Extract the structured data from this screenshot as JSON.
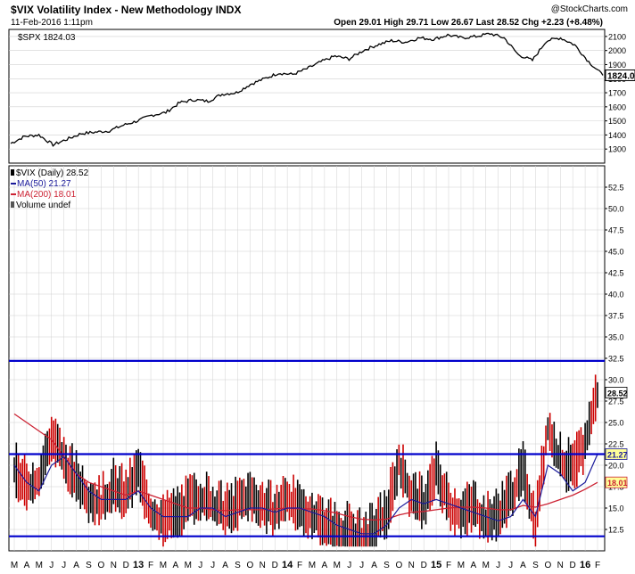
{
  "header": {
    "title": "$VIX Volatility Index - New Methodology INDX",
    "datetime": "11-Feb-2016 1:11pm",
    "watermark": "@StockCharts.com",
    "quote": "Open 29.01  High 29.71  Low 26.67  Last 28.52  Chg +2.23 (+8.48%)"
  },
  "colors": {
    "frame": "#000000",
    "grid": "#d0d0d0",
    "vix_bars": "#000000",
    "vix_down": "#cc0000",
    "ma50": "#1a1a9a",
    "ma200": "#cc2233",
    "hlines": "#0000cc",
    "last_tag": "#ffff99"
  },
  "chart_data": [
    {
      "type": "line",
      "legend": "$SPX 1824.03",
      "ylim": [
        1200,
        2150
      ],
      "y_ticks": [
        "2100",
        "2000",
        "1900",
        "1800",
        "1700",
        "1600",
        "1500",
        "1400",
        "1300"
      ],
      "last_label": "1824.03",
      "series": [
        {
          "name": "$SPX",
          "x": [
            0,
            1,
            2,
            3,
            4,
            5,
            6,
            7,
            8,
            9,
            10,
            11,
            12,
            13,
            14,
            15,
            16,
            17,
            18,
            19,
            20,
            21,
            22,
            23,
            24,
            25,
            26,
            27,
            28,
            29,
            30,
            31,
            32,
            33,
            34,
            35,
            36,
            37,
            38,
            39,
            40,
            41,
            42
          ],
          "values": [
            1340,
            1390,
            1400,
            1330,
            1370,
            1410,
            1420,
            1430,
            1470,
            1500,
            1540,
            1560,
            1630,
            1650,
            1640,
            1690,
            1700,
            1760,
            1800,
            1840,
            1830,
            1870,
            1920,
            1960,
            1940,
            2000,
            2040,
            2070,
            2060,
            2090,
            2080,
            2110,
            2090,
            2100,
            2120,
            2090,
            1970,
            1930,
            2070,
            2090,
            2040,
            1920,
            1824
          ]
        }
      ]
    },
    {
      "type": "bar",
      "legend": [
        "$VIX (Daily) 28.52",
        "MA(50) 21.27",
        "MA(200) 18.01",
        "Volume undef"
      ],
      "ylim": [
        10,
        55
      ],
      "y_ticks": [
        "52.5",
        "50.0",
        "47.5",
        "45.0",
        "42.5",
        "40.0",
        "37.5",
        "35.0",
        "32.5",
        "30.0",
        "27.5",
        "25.0",
        "22.5",
        "20.0",
        "17.5",
        "15.0",
        "12.5"
      ],
      "horizontal_lines": [
        32.2,
        21.3,
        11.7
      ],
      "last_labels": [
        "28.52",
        "21.27",
        "18.01"
      ],
      "x_labels": [
        "M",
        "A",
        "M",
        "J",
        "J",
        "A",
        "S",
        "O",
        "N",
        "D",
        "13",
        "F",
        "M",
        "A",
        "M",
        "J",
        "J",
        "A",
        "S",
        "O",
        "N",
        "D",
        "14",
        "F",
        "M",
        "A",
        "M",
        "J",
        "J",
        "A",
        "S",
        "O",
        "N",
        "D",
        "15",
        "F",
        "M",
        "A",
        "M",
        "J",
        "J",
        "A",
        "S",
        "O",
        "N",
        "D",
        "16",
        "F"
      ],
      "x": [
        0,
        1,
        2,
        3,
        4,
        5,
        6,
        7,
        8,
        9,
        10,
        11,
        12,
        13,
        14,
        15,
        16,
        17,
        18,
        19,
        20,
        21,
        22,
        23,
        24,
        25,
        26,
        27,
        28,
        29,
        30,
        31,
        32,
        33,
        34,
        35,
        36,
        37,
        38,
        39,
        40,
        41,
        42,
        43,
        44,
        45,
        46,
        47
      ],
      "series": [
        {
          "name": "$VIX (Daily)",
          "values": [
            19,
            17,
            18,
            23,
            20,
            18,
            16,
            15,
            17,
            16,
            19,
            14,
            13,
            14,
            15,
            16,
            15,
            14,
            15,
            16,
            15,
            14,
            16,
            14,
            14,
            13,
            12,
            12,
            11,
            12,
            14,
            20,
            16,
            15,
            19,
            15,
            14,
            15,
            13,
            14,
            16,
            19,
            13,
            24,
            20,
            19,
            22,
            28.5
          ]
        },
        {
          "name": "MA(50)",
          "values": [
            20,
            18,
            17,
            20,
            21,
            19,
            17,
            16,
            16,
            16,
            17,
            15,
            14,
            14,
            14,
            15,
            15,
            14,
            14.5,
            15,
            15,
            14.5,
            15,
            15,
            14.5,
            14,
            13,
            12.5,
            12,
            12,
            13,
            15,
            16,
            15.5,
            16,
            15.5,
            15,
            14.5,
            14,
            13.5,
            14,
            16,
            14,
            20,
            19,
            17,
            18,
            21.3
          ]
        },
        {
          "name": "MA(200)",
          "values": [
            26,
            25,
            24,
            23,
            21,
            19,
            18,
            17.5,
            17,
            16.5,
            17,
            16.5,
            16,
            15.5,
            15,
            15,
            14.8,
            14.7,
            14.8,
            14.8,
            14.8,
            14.9,
            15,
            14.9,
            14.9,
            14.7,
            14.4,
            14,
            13.7,
            13.6,
            13.7,
            14.2,
            14.5,
            14.6,
            14.8,
            15,
            15.1,
            15.1,
            15,
            14.8,
            14.8,
            15.3,
            15.1,
            15.5,
            16,
            16.5,
            17.2,
            18
          ]
        }
      ]
    }
  ]
}
